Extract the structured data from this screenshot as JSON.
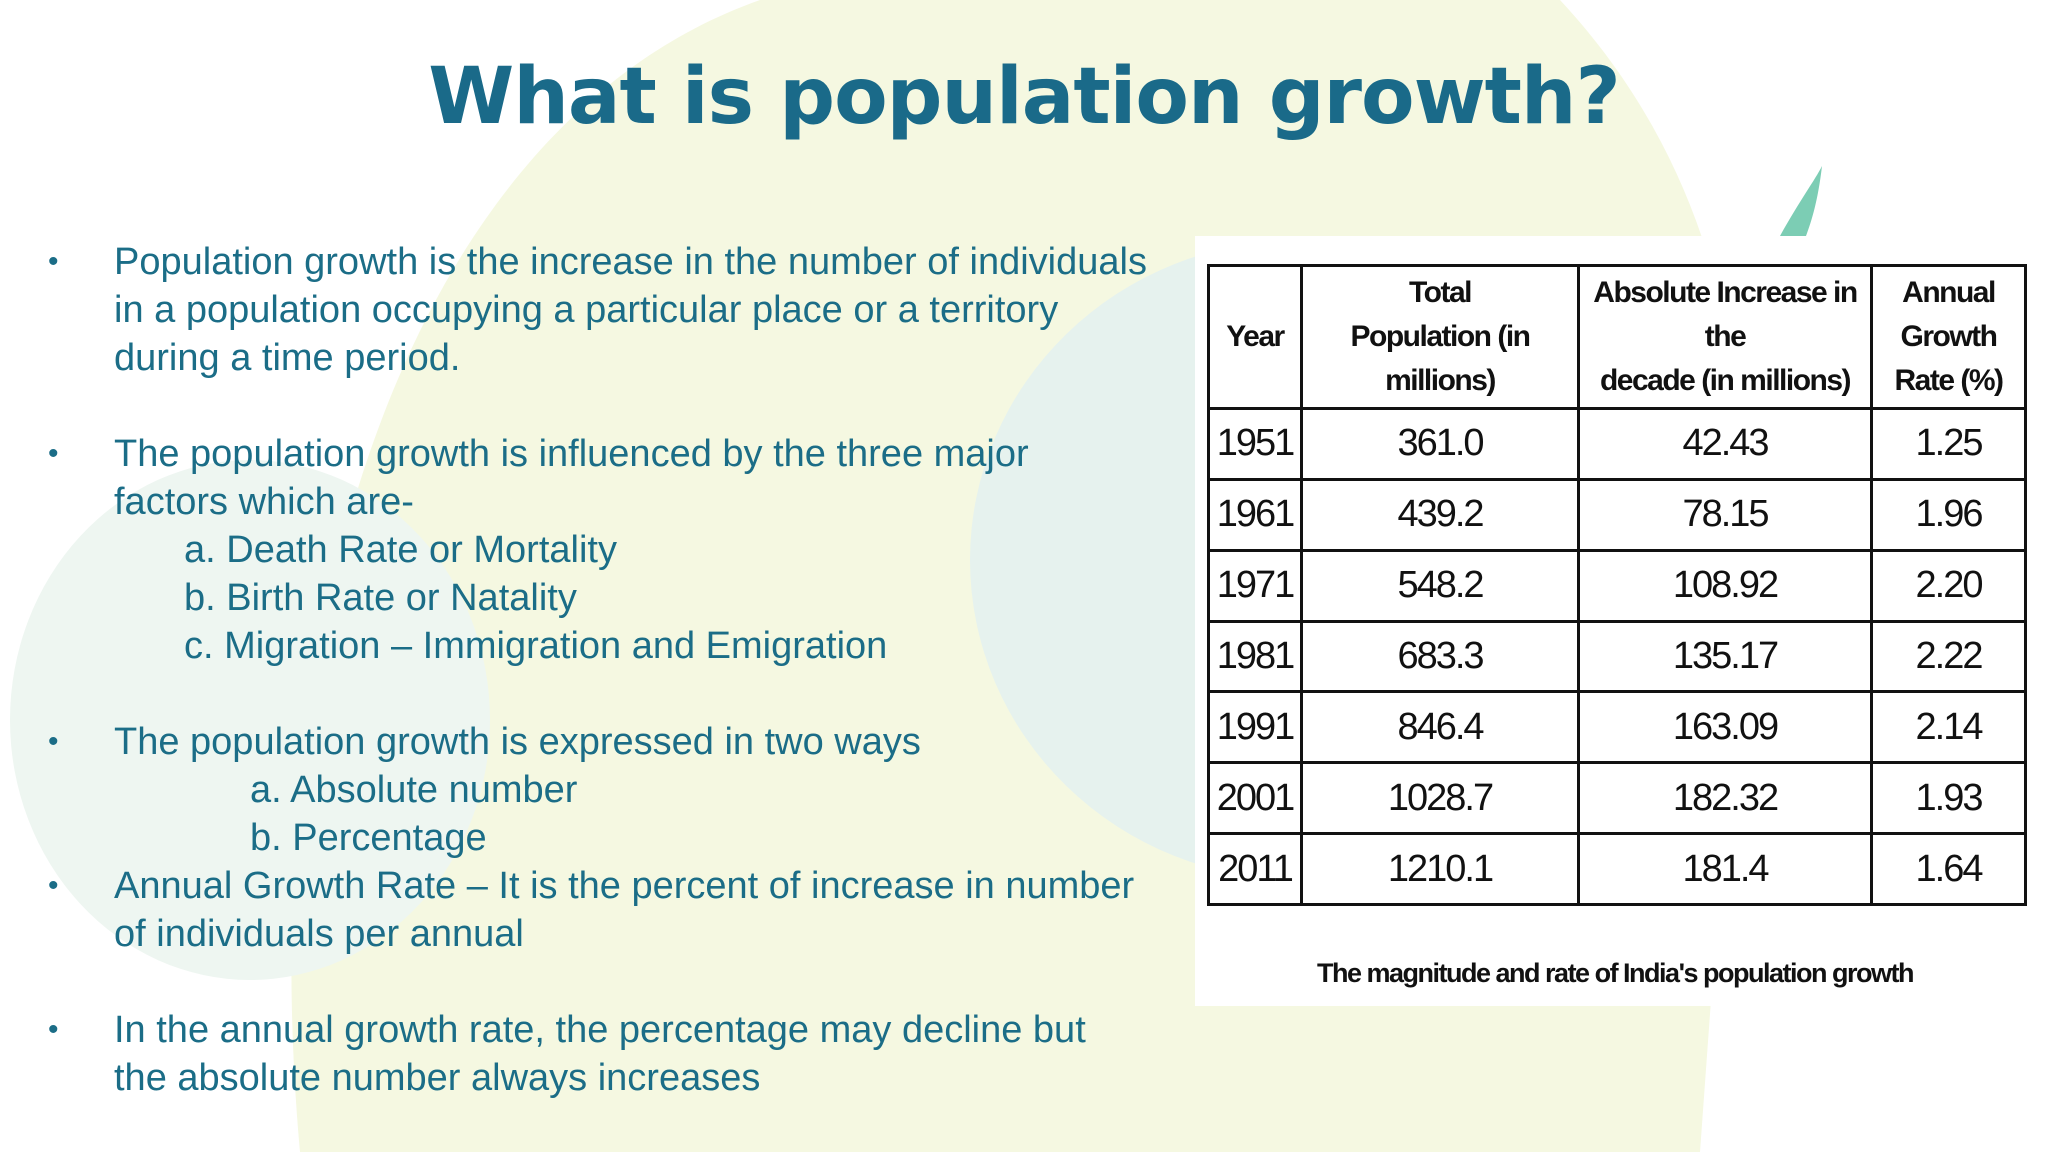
{
  "title": "What is population growth?",
  "bullets": [
    {
      "lines": [
        "Population growth is the increase in the number of individuals",
        "in a population occupying a particular place or a territory",
        "during a time period."
      ]
    },
    {
      "lines": [
        "The population growth is influenced by the three major",
        "factors which are-"
      ],
      "sub": [
        "a. Death Rate or Mortality",
        "b. Birth Rate or Natality",
        "c. Migration – Immigration and Emigration"
      ]
    },
    {
      "lines": [
        "The population growth is expressed in two ways"
      ],
      "sub": [
        "a. Absolute number",
        "b. Percentage"
      ]
    },
    {
      "lines": [
        "Annual Growth Rate – It is the percent of increase in number",
        "of individuals per annual"
      ]
    },
    {
      "lines": [
        "In the annual growth rate, the percentage may decline but",
        "the absolute number always increases"
      ]
    }
  ],
  "table": {
    "headers": [
      [
        "Year"
      ],
      [
        "Total",
        "Population (in millions)"
      ],
      [
        "Absolute Increase in the",
        "decade (in millions)"
      ],
      [
        "Annual Growth",
        "Rate (%)"
      ]
    ],
    "rows": [
      [
        "1951",
        "361.0",
        "42.43",
        "1.25"
      ],
      [
        "1961",
        "439.2",
        "78.15",
        "1.96"
      ],
      [
        "1971",
        "548.2",
        "108.92",
        "2.20"
      ],
      [
        "1981",
        "683.3",
        "135.17",
        "2.22"
      ],
      [
        "1991",
        "846.4",
        "163.09",
        "2.14"
      ],
      [
        "2001",
        "1028.7",
        "182.32",
        "1.93"
      ],
      [
        "2011",
        "1210.1",
        "181.4",
        "1.64"
      ]
    ],
    "caption": "The magnitude and rate of India's population growth"
  },
  "colors": {
    "title": "#1a6a89",
    "body_text": "#1b6d87",
    "bg_yellow": "#f4f7df",
    "bg_teal": "#e3f1ee",
    "accent_green": "#7ccdb4"
  }
}
